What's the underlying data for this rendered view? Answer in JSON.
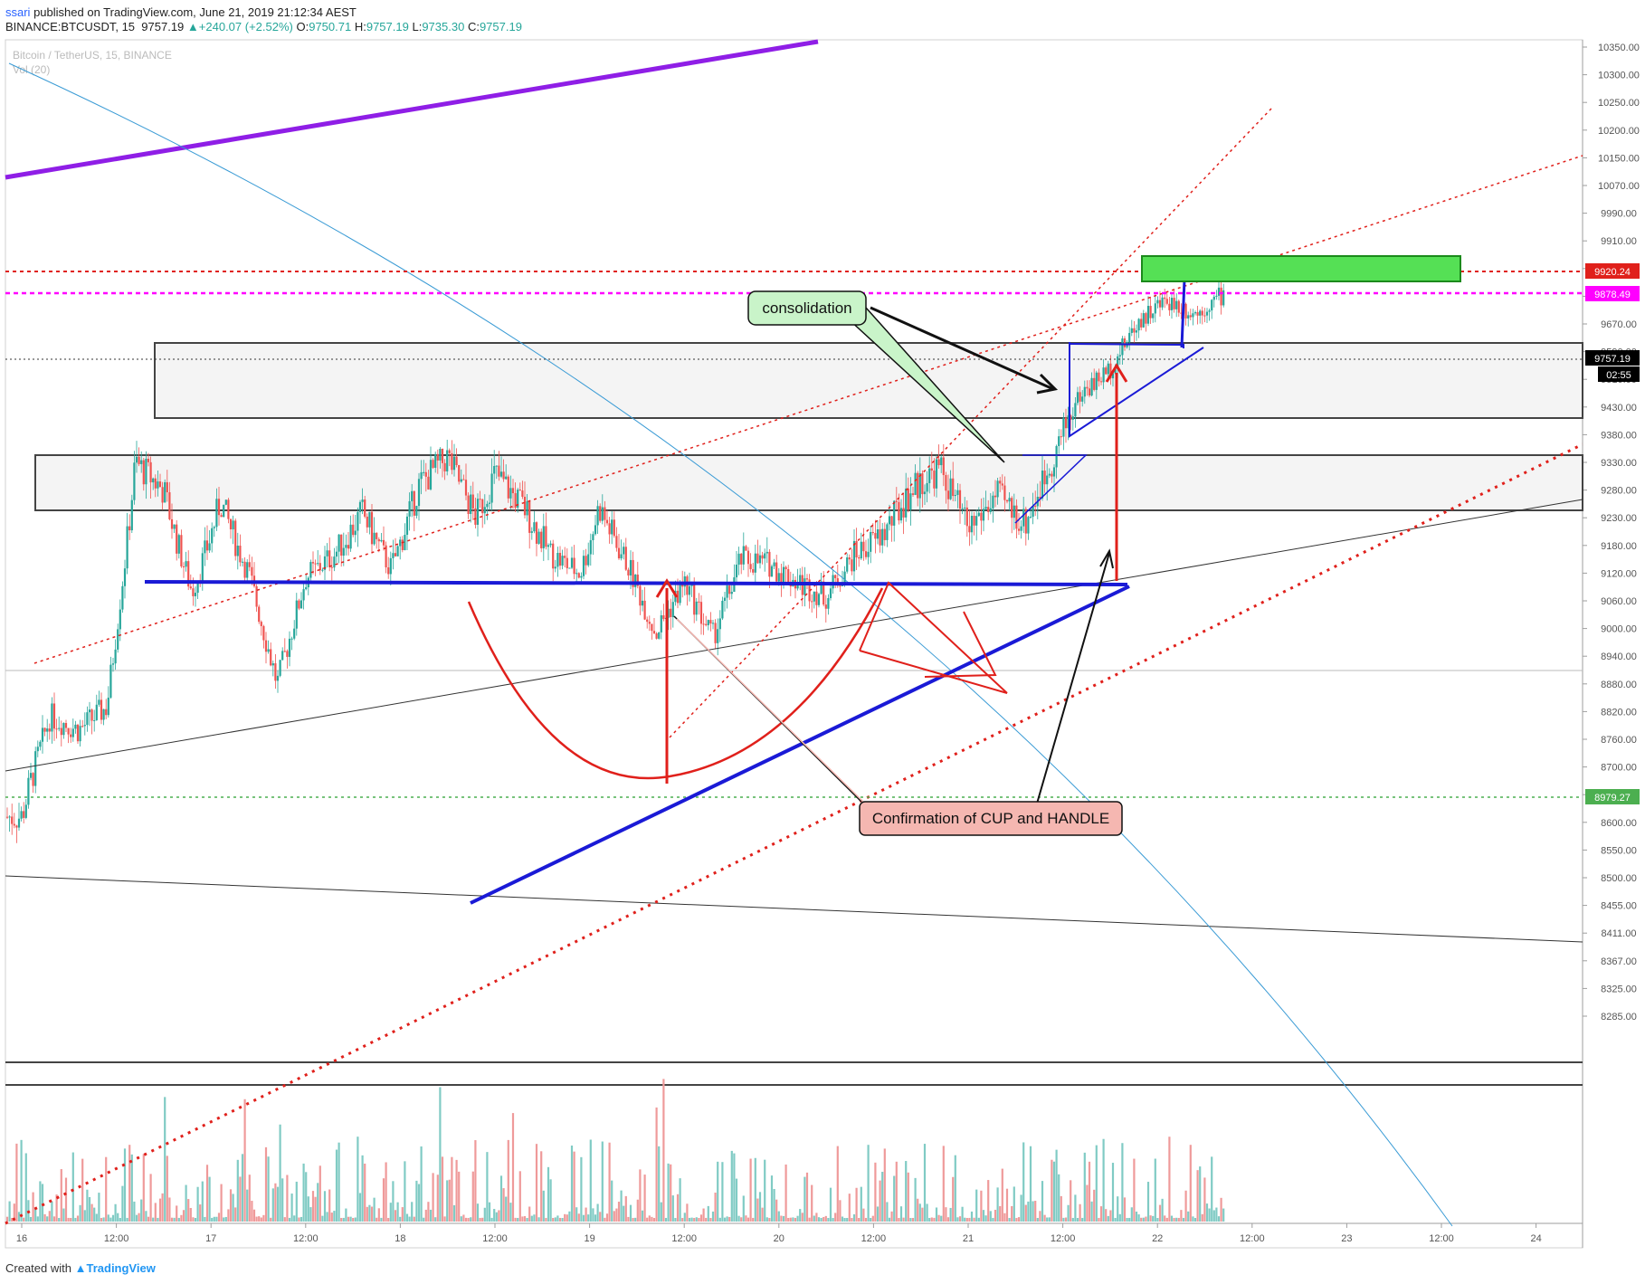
{
  "header": {
    "user": "ssari",
    "published": "published on TradingView.com, June 21, 2019 21:12:34 AEST",
    "symbol": "BINANCE:BTCUSDT, 15",
    "last": "9757.19",
    "change": "+240.07 (+2.52%)",
    "o_label": "O:",
    "o": "9750.71",
    "h_label": "H:",
    "h": "9757.19",
    "l_label": "L:",
    "l": "9735.30",
    "c_label": "C:",
    "c": "9757.19"
  },
  "legend": {
    "title": "Bitcoin / TetherUS, 15, BINANCE",
    "vol": "Vol (20)"
  },
  "footer": {
    "created": "Created with",
    "brand": "TradingView"
  },
  "colors": {
    "up": "#26a69a",
    "down": "#ef5350",
    "vol_up": "#80cbc4",
    "vol_down": "#ef9a9a",
    "blue": "#1a1ad6",
    "red": "#e0201b",
    "purple": "#8f1ee6",
    "magenta": "#ff00ff",
    "green_box": "#55e055"
  },
  "chart_data": {
    "type": "candlestick",
    "title": "Bitcoin / TetherUS, 15, BINANCE",
    "x_ticks": [
      "16",
      "12:00",
      "17",
      "12:00",
      "18",
      "12:00",
      "19",
      "12:00",
      "20",
      "12:00",
      "21",
      "12:00",
      "22",
      "12:00",
      "23",
      "12:00",
      "24"
    ],
    "y_ticks": [
      10350,
      10300,
      10250,
      10200,
      10150,
      10070,
      9990,
      9910,
      9830,
      9750,
      9670,
      9590,
      9510,
      9430,
      9380,
      9330,
      9280,
      9230,
      9180,
      9120,
      9060,
      9000,
      8940,
      8880,
      8820,
      8760,
      8700,
      8650,
      8600,
      8550,
      8500,
      8455,
      8411,
      8367,
      8325,
      8285
    ],
    "price_labels": [
      {
        "value": "9920.24",
        "color": "#e0201b"
      },
      {
        "value": "9878.49",
        "color": "#ff00ff"
      },
      {
        "value": "9757.19",
        "color": "#000000"
      },
      {
        "value": "02:55",
        "color": "#000000"
      },
      {
        "value": "8979.27",
        "color": "#4caf50"
      }
    ],
    "price_path": [
      [
        0,
        8610
      ],
      [
        0.3,
        8810
      ],
      [
        0.6,
        8780
      ],
      [
        0.9,
        8830
      ],
      [
        1.2,
        9330
      ],
      [
        1.5,
        9280
      ],
      [
        1.8,
        9080
      ],
      [
        2.1,
        9260
      ],
      [
        2.4,
        9120
      ],
      [
        2.7,
        8880
      ],
      [
        3.0,
        9110
      ],
      [
        3.3,
        9160
      ],
      [
        3.6,
        9240
      ],
      [
        3.9,
        9130
      ],
      [
        4.2,
        9290
      ],
      [
        4.5,
        9340
      ],
      [
        4.8,
        9230
      ],
      [
        5.0,
        9310
      ],
      [
        5.3,
        9250
      ],
      [
        5.6,
        9160
      ],
      [
        5.9,
        9120
      ],
      [
        6.1,
        9250
      ],
      [
        6.4,
        9140
      ],
      [
        6.7,
        8990
      ],
      [
        7.0,
        9100
      ],
      [
        7.3,
        8980
      ],
      [
        7.6,
        9150
      ],
      [
        7.9,
        9140
      ],
      [
        8.2,
        9100
      ],
      [
        8.5,
        9070
      ],
      [
        8.8,
        9160
      ],
      [
        9.1,
        9200
      ],
      [
        9.4,
        9280
      ],
      [
        9.7,
        9320
      ],
      [
        10.0,
        9210
      ],
      [
        10.3,
        9270
      ],
      [
        10.6,
        9220
      ],
      [
        10.9,
        9340
      ],
      [
        11.2,
        9470
      ],
      [
        11.5,
        9540
      ],
      [
        11.8,
        9680
      ],
      [
        12.1,
        9740
      ],
      [
        12.4,
        9700
      ],
      [
        12.7,
        9757
      ]
    ],
    "annotations": [
      "consolidation",
      "Confirmation of CUP and HANDLE"
    ],
    "grid": false,
    "legend_position": "top-left"
  }
}
